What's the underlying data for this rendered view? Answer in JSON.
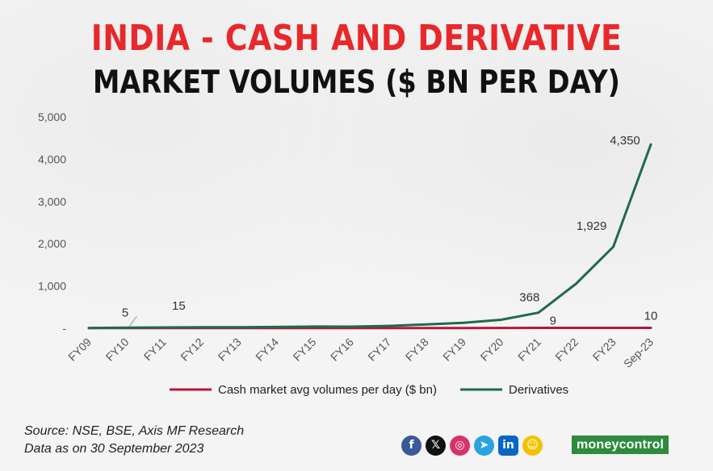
{
  "title_line1": "INDIA - CASH AND DERIVATIVE",
  "title_line2": "MARKET VOLUMES ($ BN PER DAY)",
  "colors": {
    "title_red": "#e8282b",
    "cash_series": "#b5173e",
    "derivatives_series": "#1e6b4b",
    "logo_green": "#2e8b3e"
  },
  "chart_data": {
    "type": "line",
    "title": "INDIA - CASH AND DERIVATIVE MARKET VOLUMES ($ BN PER DAY)",
    "xlabel": "",
    "ylabel": "",
    "x": [
      "FY09",
      "FY10",
      "FY11",
      "FY12",
      "FY13",
      "FY14",
      "FY15",
      "FY16",
      "FY17",
      "FY18",
      "FY19",
      "FY20",
      "FY21",
      "FY22",
      "FY23",
      "Sep-23"
    ],
    "y_ticks": [
      0,
      1000,
      2000,
      3000,
      4000,
      5000
    ],
    "y_tick_labels": [
      "-",
      "1,000",
      "2,000",
      "3,000",
      "4,000",
      "5,000"
    ],
    "ylim": [
      0,
      5000
    ],
    "grid": false,
    "legend_position": "bottom",
    "series": [
      {
        "name": "Cash market avg volumes per day ($ bn)",
        "color": "#b5173e",
        "values": [
          3,
          3,
          3,
          3,
          3,
          3,
          4,
          4,
          5,
          6,
          6,
          7,
          9,
          9,
          9,
          10
        ]
      },
      {
        "name": "Derivatives",
        "color": "#1e6b4b",
        "values": [
          5,
          15,
          20,
          25,
          25,
          30,
          40,
          38,
          55,
          90,
          130,
          200,
          368,
          1050,
          1929,
          4350
        ]
      }
    ],
    "annotations": [
      {
        "series": 1,
        "index": 0,
        "text": "5"
      },
      {
        "series": 1,
        "index": 1,
        "text": "15"
      },
      {
        "series": 1,
        "index": 12,
        "text": "368"
      },
      {
        "series": 1,
        "index": 14,
        "text": "1,929"
      },
      {
        "series": 1,
        "index": 15,
        "text": "4,350"
      },
      {
        "series": 0,
        "index": 12,
        "text": "9"
      },
      {
        "series": 0,
        "index": 15,
        "text": "10"
      }
    ]
  },
  "footer": {
    "source": "Source:  NSE, BSE, Axis MF Research",
    "date_note": "Data as on 30 September 2023"
  },
  "socials": [
    {
      "icon": "facebook-icon",
      "glyph": "f",
      "color": "#3b5998",
      "shape": "circle"
    },
    {
      "icon": "x-icon",
      "glyph": "𝕏",
      "color": "#111111",
      "shape": "circle"
    },
    {
      "icon": "instagram-icon",
      "glyph": "◎",
      "color": "#d6336c",
      "shape": "circle"
    },
    {
      "icon": "telegram-icon",
      "glyph": "➤",
      "color": "#2aa3de",
      "shape": "circle"
    },
    {
      "icon": "linkedin-icon",
      "glyph": "in",
      "color": "#0a66c2",
      "shape": "square"
    },
    {
      "icon": "snapchat-icon",
      "glyph": "☺",
      "color": "#f2c200",
      "shape": "circle"
    }
  ],
  "logo_text": "moneycontrol"
}
